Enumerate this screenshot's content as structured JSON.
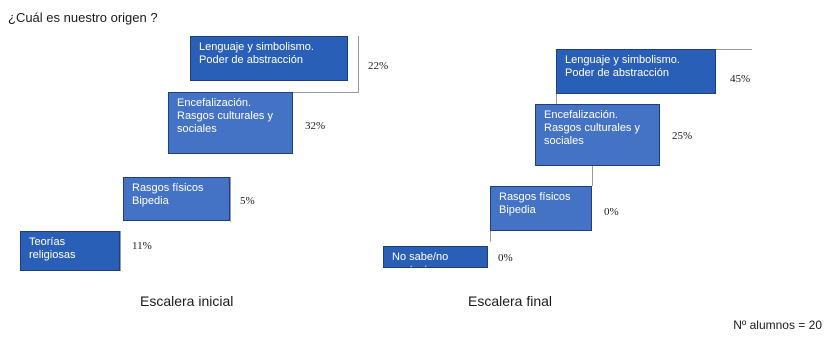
{
  "title": "¿Cuál es nuestro origen ?",
  "colors": {
    "step_dark": "#2a5fb7",
    "step_light": "#4472c4"
  },
  "left": {
    "caption": "Escalera inicial",
    "steps": [
      {
        "label": "Teorías religiosas",
        "pct": "11%"
      },
      {
        "label": "Rasgos físicos Bipedia",
        "pct": "5%"
      },
      {
        "label": "Encefalización. Rasgos culturales y sociales",
        "pct": "32%"
      },
      {
        "label": "Lenguaje y simbolismo. Poder de abstracción",
        "pct": "22%"
      }
    ]
  },
  "right": {
    "caption": "Escalera final",
    "steps": [
      {
        "label": "No sabe/no contesta",
        "pct": "0%"
      },
      {
        "label": "Rasgos físicos Bipedia",
        "pct": "0%"
      },
      {
        "label": "Encefalización. Rasgos culturales y sociales",
        "pct": "25%"
      },
      {
        "label": "Lenguaje y simbolismo. Poder de abstracción",
        "pct": "45%"
      }
    ]
  },
  "footnote": "Nº alumnos = 20"
}
